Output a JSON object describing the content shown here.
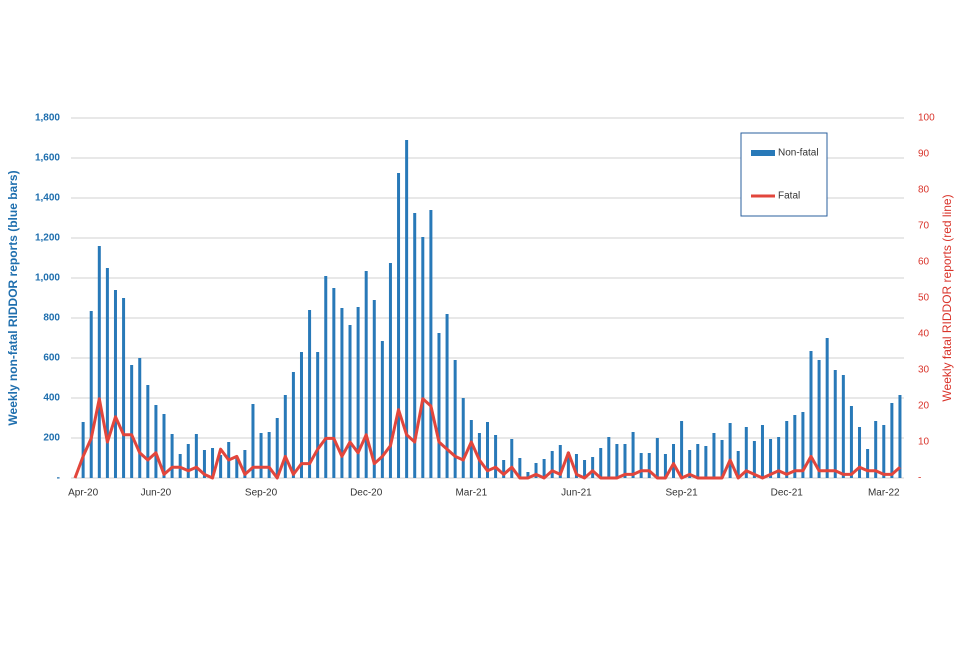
{
  "chart_data": {
    "type": "bar-line",
    "y_label": "Weekly non-fatal RIDDOR reports (blue bars)",
    "y2_label": "Weekly fatal RIDDOR reports (red line)",
    "categories": [
      null,
      "Apr-20",
      null,
      null,
      null,
      null,
      null,
      null,
      null,
      null,
      "Jun-20",
      null,
      null,
      null,
      null,
      null,
      null,
      null,
      null,
      null,
      null,
      null,
      null,
      "Sep-20",
      null,
      null,
      null,
      null,
      null,
      null,
      null,
      null,
      null,
      null,
      null,
      null,
      "Dec-20",
      null,
      null,
      null,
      null,
      null,
      null,
      null,
      null,
      null,
      null,
      null,
      null,
      "Mar-21",
      null,
      null,
      null,
      null,
      null,
      null,
      null,
      null,
      null,
      null,
      null,
      null,
      "Jun-21",
      null,
      null,
      null,
      null,
      null,
      null,
      null,
      null,
      null,
      null,
      null,
      null,
      "Sep-21",
      null,
      null,
      null,
      null,
      null,
      null,
      null,
      null,
      null,
      null,
      null,
      null,
      "Dec-21",
      null,
      null,
      null,
      null,
      null,
      null,
      null,
      null,
      null,
      null,
      null,
      "Mar-22",
      null,
      null
    ],
    "series": [
      {
        "name": "Non-fatal",
        "type": "bar",
        "axis": "y",
        "color": "#2879b8",
        "values": [
          0,
          280,
          835,
          1160,
          1050,
          940,
          900,
          565,
          600,
          465,
          365,
          320,
          220,
          120,
          170,
          220,
          140,
          150,
          115,
          180,
          100,
          140,
          370,
          225,
          230,
          300,
          415,
          530,
          630,
          840,
          630,
          1010,
          950,
          850,
          765,
          855,
          1035,
          890,
          685,
          1075,
          1525,
          1690,
          1325,
          1205,
          1340,
          725,
          820,
          590,
          400,
          290,
          225,
          280,
          215,
          90,
          195,
          100,
          30,
          75,
          95,
          135,
          165,
          130,
          120,
          90,
          105,
          150,
          205,
          170,
          170,
          230,
          125,
          125,
          200,
          120,
          170,
          285,
          140,
          170,
          160,
          225,
          190,
          275,
          135,
          255,
          185,
          265,
          195,
          205,
          285,
          315,
          330,
          635,
          590,
          700,
          540,
          515,
          360,
          255,
          145,
          285,
          265,
          375,
          415
        ]
      },
      {
        "name": "Fatal",
        "type": "line",
        "axis": "y2",
        "color": "#e2463c",
        "values": [
          0,
          6,
          11,
          22,
          10,
          17,
          12,
          12,
          7,
          5,
          7,
          1,
          3,
          3,
          2,
          3,
          1,
          0,
          8,
          5,
          6,
          1,
          3,
          3,
          3,
          0,
          6,
          1,
          4,
          4,
          8,
          11,
          11,
          6,
          10,
          7,
          12,
          4,
          6,
          9,
          19,
          12,
          10,
          22,
          20,
          10,
          8,
          6,
          5,
          10,
          5,
          2,
          3,
          1,
          3,
          0,
          0,
          1,
          0,
          2,
          1,
          7,
          1,
          0,
          2,
          0,
          0,
          0,
          1,
          1,
          2,
          2,
          0,
          0,
          4,
          0,
          1,
          0,
          0,
          0,
          0,
          5,
          0,
          2,
          1,
          0,
          1,
          2,
          1,
          2,
          2,
          6,
          2,
          2,
          2,
          1,
          1,
          3,
          2,
          2,
          1,
          1,
          3
        ]
      }
    ],
    "ylim": [
      0,
      1800
    ],
    "yticks": [
      {
        "value": 0,
        "label": "-"
      },
      200,
      400,
      600,
      800,
      {
        "value": 1000,
        "label": "1,000"
      },
      {
        "value": 1200,
        "label": "1,200"
      },
      {
        "value": 1400,
        "label": "1,400"
      },
      {
        "value": 1600,
        "label": "1,600"
      },
      {
        "value": 1800,
        "label": "1,800"
      }
    ],
    "y2lim": [
      0,
      100
    ],
    "y2ticks": [
      {
        "value": 0,
        "label": "-"
      },
      10,
      20,
      30,
      40,
      50,
      60,
      70,
      80,
      90,
      100
    ],
    "grid": true,
    "legend": "top-right"
  }
}
